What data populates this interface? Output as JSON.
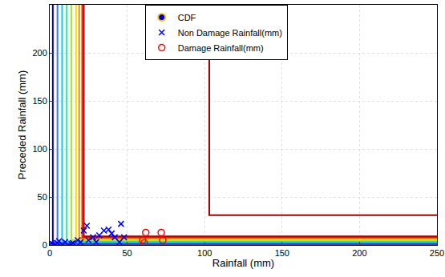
{
  "chart_data": {
    "type": "scatter",
    "x_label": "Rainfall (mm)",
    "y_label": "Preceded Rainfall (mm)",
    "xlim": [
      0,
      250
    ],
    "ylim": [
      0,
      250
    ],
    "xticks": [
      0,
      50,
      100,
      150,
      200,
      250
    ],
    "yticks": [
      0,
      50,
      100,
      150,
      200,
      250
    ],
    "grid": true,
    "legend": "top",
    "series": [
      {
        "name": "CDF",
        "type": "contour",
        "marker": "circle",
        "color": "#0000cc",
        "levels": [
          {
            "x": 2,
            "y": 1,
            "color": "#0000cc"
          },
          {
            "x": 5,
            "y": 2,
            "color": "#3377ff"
          },
          {
            "x": 8,
            "y": 3,
            "color": "#00ccff"
          },
          {
            "x": 11,
            "y": 4,
            "color": "#33dd99"
          },
          {
            "x": 14,
            "y": 5,
            "color": "#99ee33"
          },
          {
            "x": 17,
            "y": 6,
            "color": "#ffdd00"
          },
          {
            "x": 19,
            "y": 7,
            "color": "#ff8800"
          },
          {
            "x": 21,
            "y": 8,
            "color": "#ee2200"
          },
          {
            "x": 22,
            "y": 9,
            "color": "#aa0000"
          },
          {
            "x": 103,
            "y": 31,
            "color": "#aa0000"
          }
        ]
      },
      {
        "name": "Non Damage Rainfall(mm)",
        "type": "scatter",
        "marker": "x",
        "color": "#0000ff",
        "x": [
          0,
          1,
          2,
          3,
          5,
          6,
          8,
          10,
          12,
          14,
          15,
          18,
          20,
          22,
          24,
          25,
          28,
          30,
          32,
          35,
          38,
          40,
          42,
          45,
          46,
          48
        ],
        "y": [
          0,
          2,
          1,
          0,
          2,
          4,
          1,
          3,
          0,
          1,
          2,
          5,
          3,
          15,
          20,
          5,
          8,
          3,
          10,
          15,
          16,
          12,
          8,
          3,
          22,
          8
        ]
      },
      {
        "name": "Damage Rainfall(mm)",
        "type": "scatter",
        "marker": "circle-open",
        "color": "#ff0000",
        "x": [
          60,
          61,
          62,
          72,
          73
        ],
        "y": [
          5,
          2,
          13,
          13,
          5
        ]
      }
    ]
  }
}
